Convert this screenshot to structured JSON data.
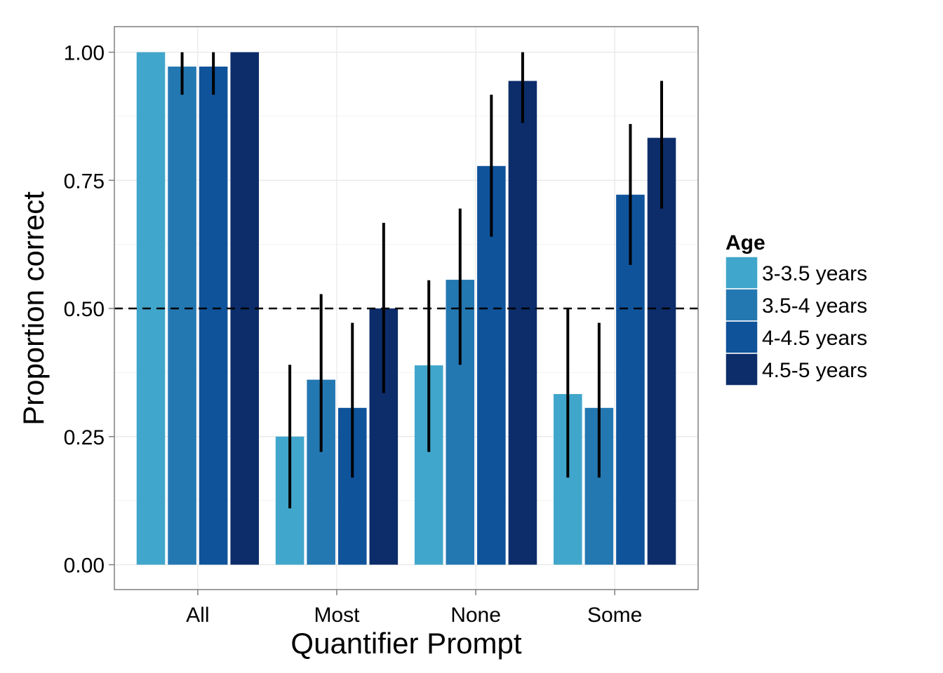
{
  "chart_data": {
    "type": "bar",
    "title": "",
    "xlabel": "Quantifier Prompt",
    "ylabel": "Proportion correct",
    "categories": [
      "All",
      "Most",
      "None",
      "Some"
    ],
    "ylim": [
      -0.05,
      1.05
    ],
    "yticks": [
      0.0,
      0.25,
      0.5,
      0.75,
      1.0
    ],
    "ytick_labels": [
      "0.00",
      "0.25",
      "0.50",
      "0.75",
      "1.00"
    ],
    "reference_line": {
      "y": 0.5,
      "style": "dashed"
    },
    "grid": true,
    "legend": {
      "title": "Age",
      "position": "right"
    },
    "series": [
      {
        "name": "3-3.5 years",
        "color": "#41a6cb",
        "values": [
          1.0,
          0.25,
          0.389,
          0.333
        ],
        "err_low": [
          null,
          0.11,
          0.22,
          0.17
        ],
        "err_high": [
          null,
          0.39,
          0.555,
          0.5
        ]
      },
      {
        "name": "3.5-4 years",
        "color": "#2478b2",
        "values": [
          0.972,
          0.361,
          0.556,
          0.306
        ],
        "err_low": [
          0.917,
          0.22,
          0.39,
          0.17
        ],
        "err_high": [
          1.0,
          0.528,
          0.695,
          0.472
        ]
      },
      {
        "name": "4-4.5 years",
        "color": "#0f539b",
        "values": [
          0.972,
          0.306,
          0.778,
          0.722
        ],
        "err_low": [
          0.917,
          0.17,
          0.64,
          0.585
        ],
        "err_high": [
          1.0,
          0.472,
          0.917,
          0.86
        ]
      },
      {
        "name": "4.5-5 years",
        "color": "#0c2d6a",
        "values": [
          1.0,
          0.5,
          0.944,
          0.833
        ],
        "err_low": [
          null,
          0.335,
          0.862,
          0.695
        ],
        "err_high": [
          null,
          0.667,
          1.0,
          0.944
        ]
      }
    ]
  }
}
